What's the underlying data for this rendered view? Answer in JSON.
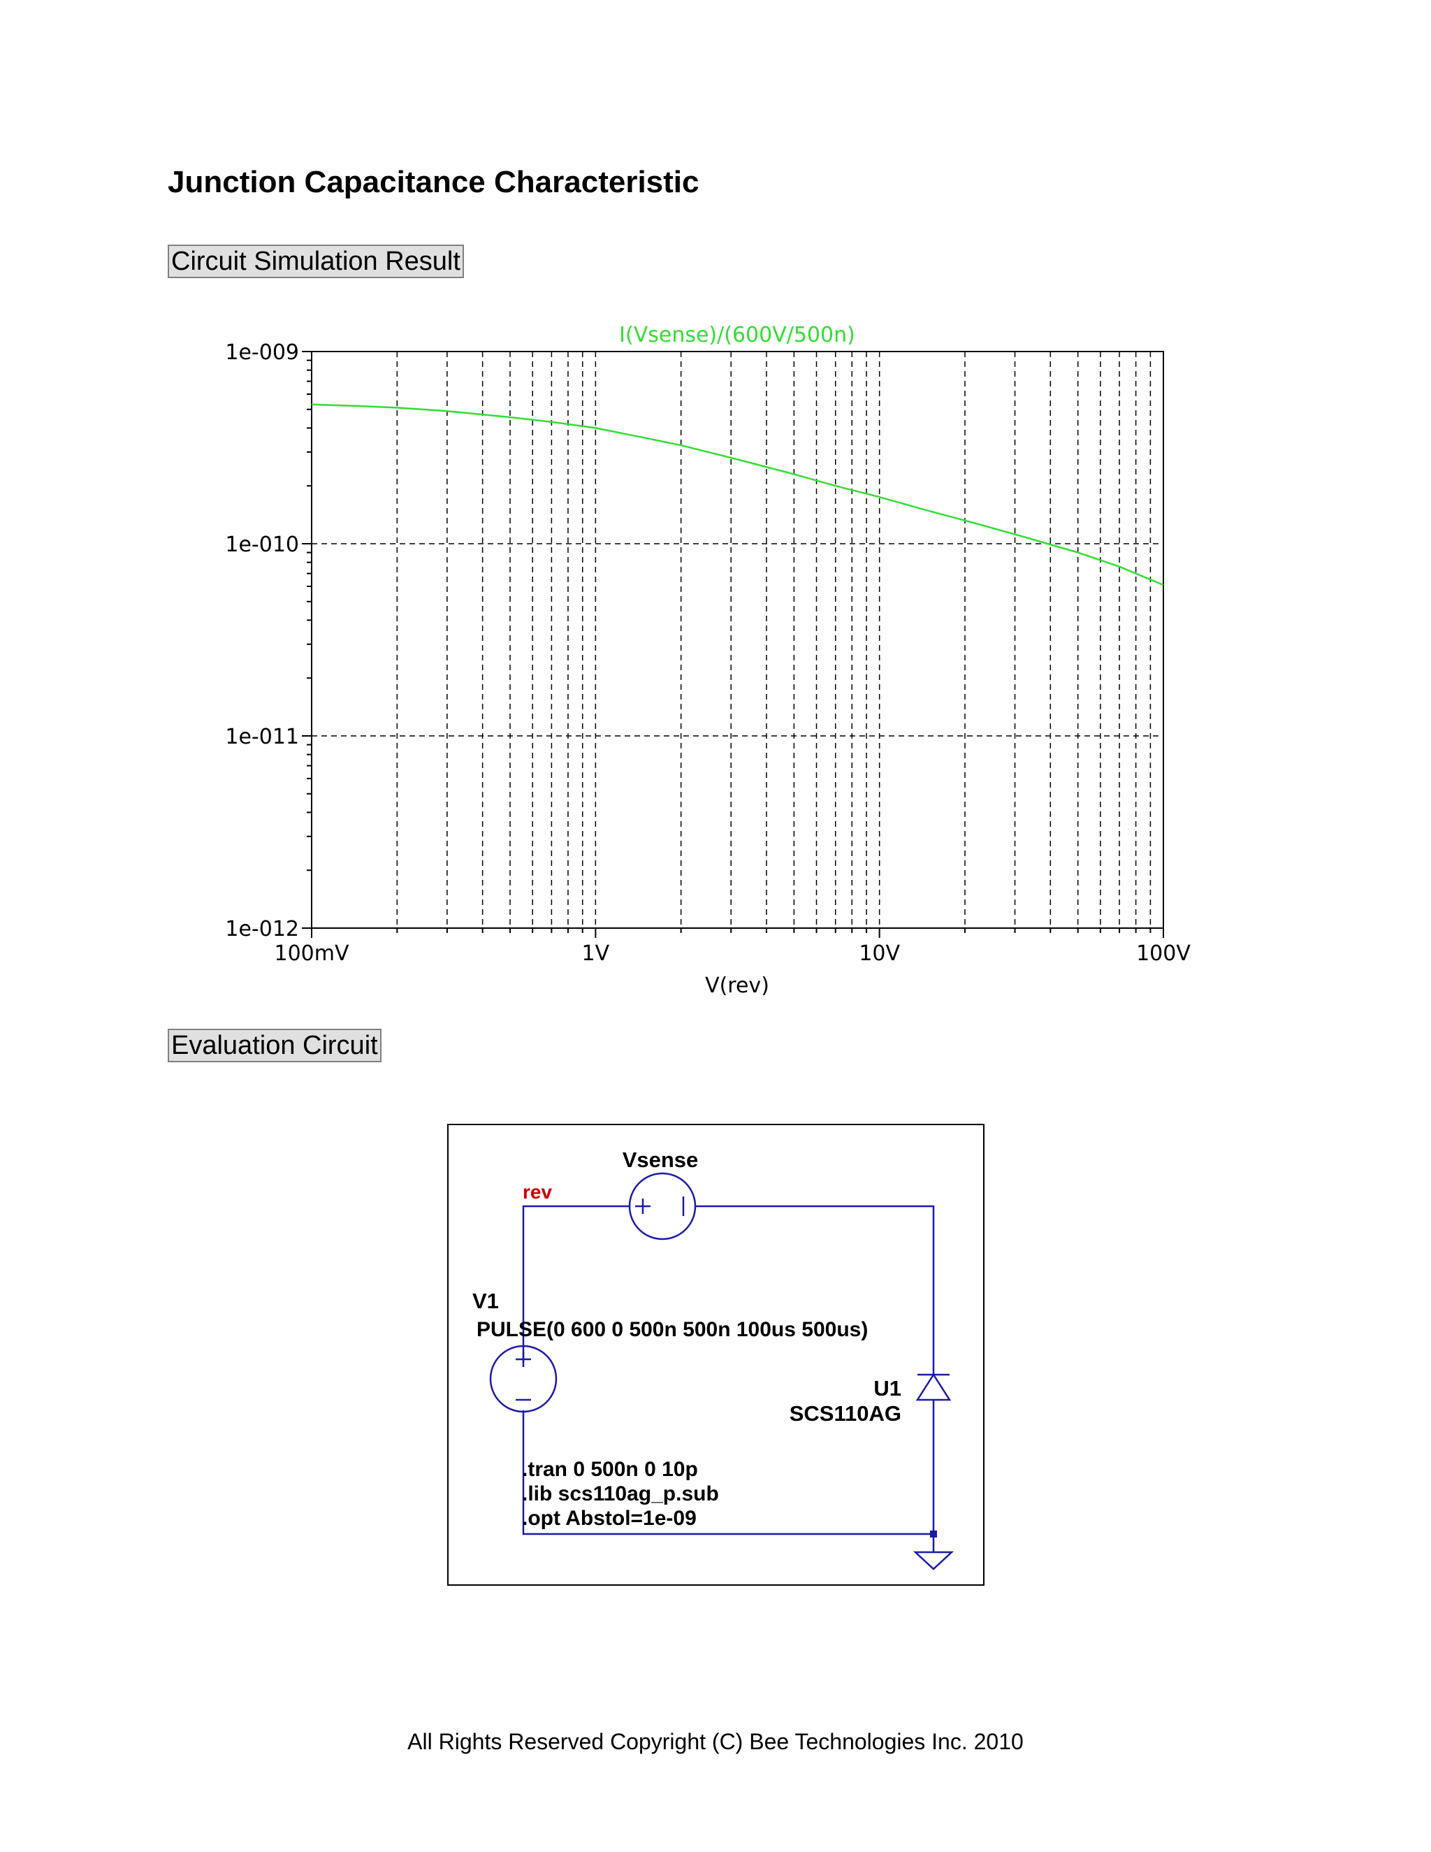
{
  "page": {
    "title": "Junction Capacitance Characteristic",
    "sections": {
      "simulation_label": "Circuit Simulation Result",
      "evaluation_label": "Evaluation Circuit"
    },
    "footer": "All Rights Reserved Copyright (C) Bee Technologies Inc. 2010"
  },
  "chart_data": {
    "type": "line",
    "title": "",
    "xlabel": "V(rev)",
    "ylabel": "",
    "x_scale": "log",
    "y_scale": "log",
    "xlim": [
      0.1,
      100
    ],
    "ylim": [
      1e-12,
      1e-09
    ],
    "grid": true,
    "x_tick_labels": [
      "100mV",
      "1V",
      "10V",
      "100V"
    ],
    "y_tick_labels": [
      "1e-009",
      "1e-010",
      "1e-011",
      "1e-012"
    ],
    "series_color": "#33dd33",
    "series": [
      {
        "name": "I(Vsense)/(600V/500n)",
        "x": [
          0.1,
          0.15,
          0.2,
          0.3,
          0.5,
          0.7,
          1,
          1.5,
          2,
          3,
          5,
          7,
          10,
          15,
          20,
          30,
          50,
          70,
          100
        ],
        "y": [
          5.3e-10,
          5.2e-10,
          5.1e-10,
          4.9e-10,
          4.55e-10,
          4.3e-10,
          4e-10,
          3.55e-10,
          3.25e-10,
          2.8e-10,
          2.3e-10,
          2e-10,
          1.75e-10,
          1.48e-10,
          1.32e-10,
          1.12e-10,
          9e-11,
          7.6e-11,
          6.1e-11
        ]
      }
    ]
  },
  "schematic": {
    "net_label": "rev",
    "net_label_color": "#cc0000",
    "wire_color": "#1a1aaa",
    "vsense_label": "Vsense",
    "v1_name": "V1",
    "v1_value": "PULSE(0 600 0 500n 500n 100us 500us)",
    "diode_name": "U1",
    "diode_model": "SCS110AG",
    "directives": [
      ".tran 0 500n 0 10p",
      ".lib scs110ag_p.sub",
      ".opt Abstol=1e-09"
    ]
  }
}
